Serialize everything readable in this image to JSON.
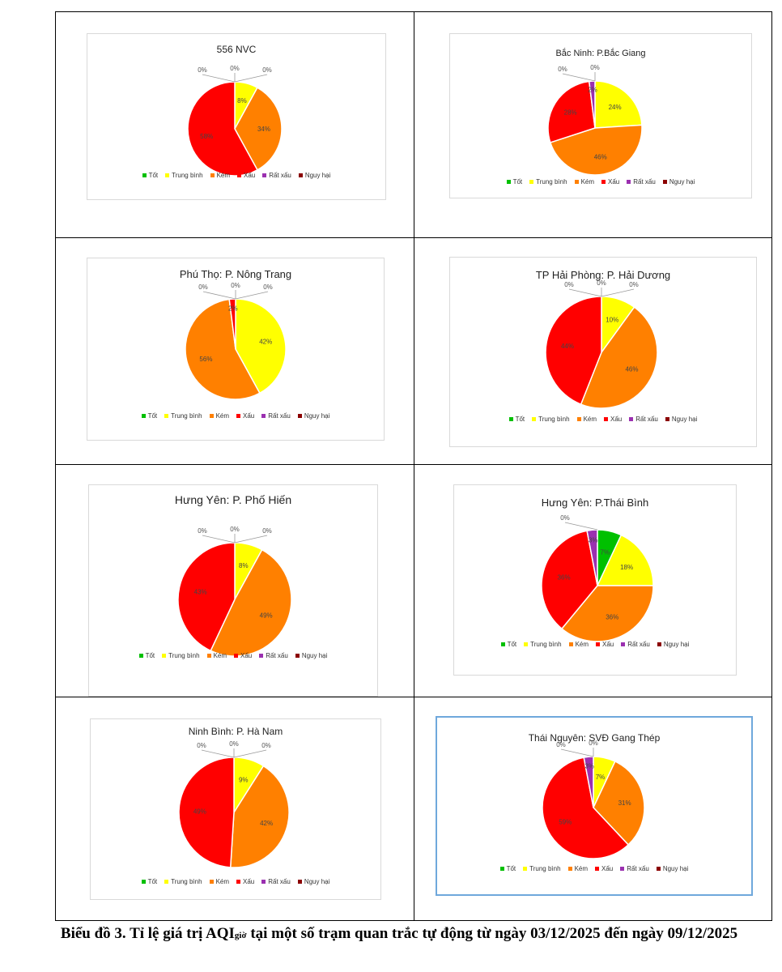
{
  "colors": {
    "Tốt": "#00c000",
    "Trung bình": "#ffff00",
    "Kém": "#ff8000",
    "Xấu": "#ff0000",
    "Rất xấu": "#9b30b0",
    "Nguy hại": "#8b0000"
  },
  "legend": [
    "Tốt",
    "Trung bình",
    "Kém",
    "Xấu",
    "Rất xấu",
    "Nguy hại"
  ],
  "caption": {
    "prefix": "Biểu đồ 3.  Tỉ lệ giá trị AQI",
    "sub": "giờ",
    "suffix": " tại một số trạm quan trắc tự động từ ngày 03/12/2025 đến ngày 09/12/2025"
  },
  "chart_data": [
    {
      "type": "pie",
      "title": "556 NVC",
      "categories": [
        "Tốt",
        "Trung bình",
        "Kém",
        "Xấu",
        "Rất xấu",
        "Nguy hại"
      ],
      "values": [
        0,
        8,
        34,
        58,
        0,
        0
      ],
      "labels": [
        "0%",
        "8%",
        "34%",
        "58%",
        "0%",
        "0%"
      ]
    },
    {
      "type": "pie",
      "title": "Bắc Ninh: P.Bắc Giang",
      "categories": [
        "Tốt",
        "Trung bình",
        "Kém",
        "Xấu",
        "Rất xấu",
        "Nguy hại"
      ],
      "values": [
        0,
        24,
        46,
        28,
        2,
        0
      ],
      "labels": [
        "0%",
        "24%",
        "46%",
        "28%",
        "2%",
        "0%"
      ]
    },
    {
      "type": "pie",
      "title": "Phú Thọ: P. Nông Trang",
      "categories": [
        "Tốt",
        "Trung bình",
        "Kém",
        "Xấu",
        "Rất xấu",
        "Nguy hại"
      ],
      "values": [
        0,
        42,
        56,
        2,
        0,
        0
      ],
      "labels": [
        "0%",
        "42%",
        "56%",
        "2%",
        "0%",
        "0%"
      ]
    },
    {
      "type": "pie",
      "title": "TP Hải Phòng: P. Hải Dương",
      "categories": [
        "Tốt",
        "Trung bình",
        "Kém",
        "Xấu",
        "Rất xấu",
        "Nguy hại"
      ],
      "values": [
        0,
        10,
        46,
        44,
        0,
        0
      ],
      "labels": [
        "0%",
        "10%",
        "46%",
        "44%",
        "0%",
        "0%"
      ]
    },
    {
      "type": "pie",
      "title": "Hưng Yên: P. Phố Hiến",
      "categories": [
        "Tốt",
        "Trung bình",
        "Kém",
        "Xấu",
        "Rất xấu",
        "Nguy hại"
      ],
      "values": [
        0,
        8,
        49,
        43,
        0,
        0
      ],
      "labels": [
        "0%",
        "8%",
        "49%",
        "43%",
        "0%",
        "0%"
      ]
    },
    {
      "type": "pie",
      "title": "Hưng Yên: P.Thái Bình",
      "categories": [
        "Tốt",
        "Trung bình",
        "Kém",
        "Xấu",
        "Rất xấu",
        "Nguy hại"
      ],
      "values": [
        7,
        18,
        36,
        36,
        3,
        0
      ],
      "labels": [
        "7%",
        "18%",
        "36%",
        "36%",
        "3%",
        "0%"
      ]
    },
    {
      "type": "pie",
      "title": "Ninh Bình: P. Hà Nam",
      "categories": [
        "Tốt",
        "Trung bình",
        "Kém",
        "Xấu",
        "Rất xấu",
        "Nguy hại"
      ],
      "values": [
        0,
        9,
        42,
        49,
        0,
        0
      ],
      "labels": [
        "0%",
        "9%",
        "42%",
        "49%",
        "0%",
        "0%"
      ]
    },
    {
      "type": "pie",
      "title": "Thái Nguyên: SVĐ Gang Thép",
      "categories": [
        "Tốt",
        "Trung bình",
        "Kém",
        "Xấu",
        "Rất xấu",
        "Nguy hại"
      ],
      "values": [
        0,
        7,
        31,
        59,
        3,
        0
      ],
      "labels": [
        "0%",
        "7%",
        "31%",
        "59%",
        "3%",
        "0%"
      ]
    }
  ]
}
